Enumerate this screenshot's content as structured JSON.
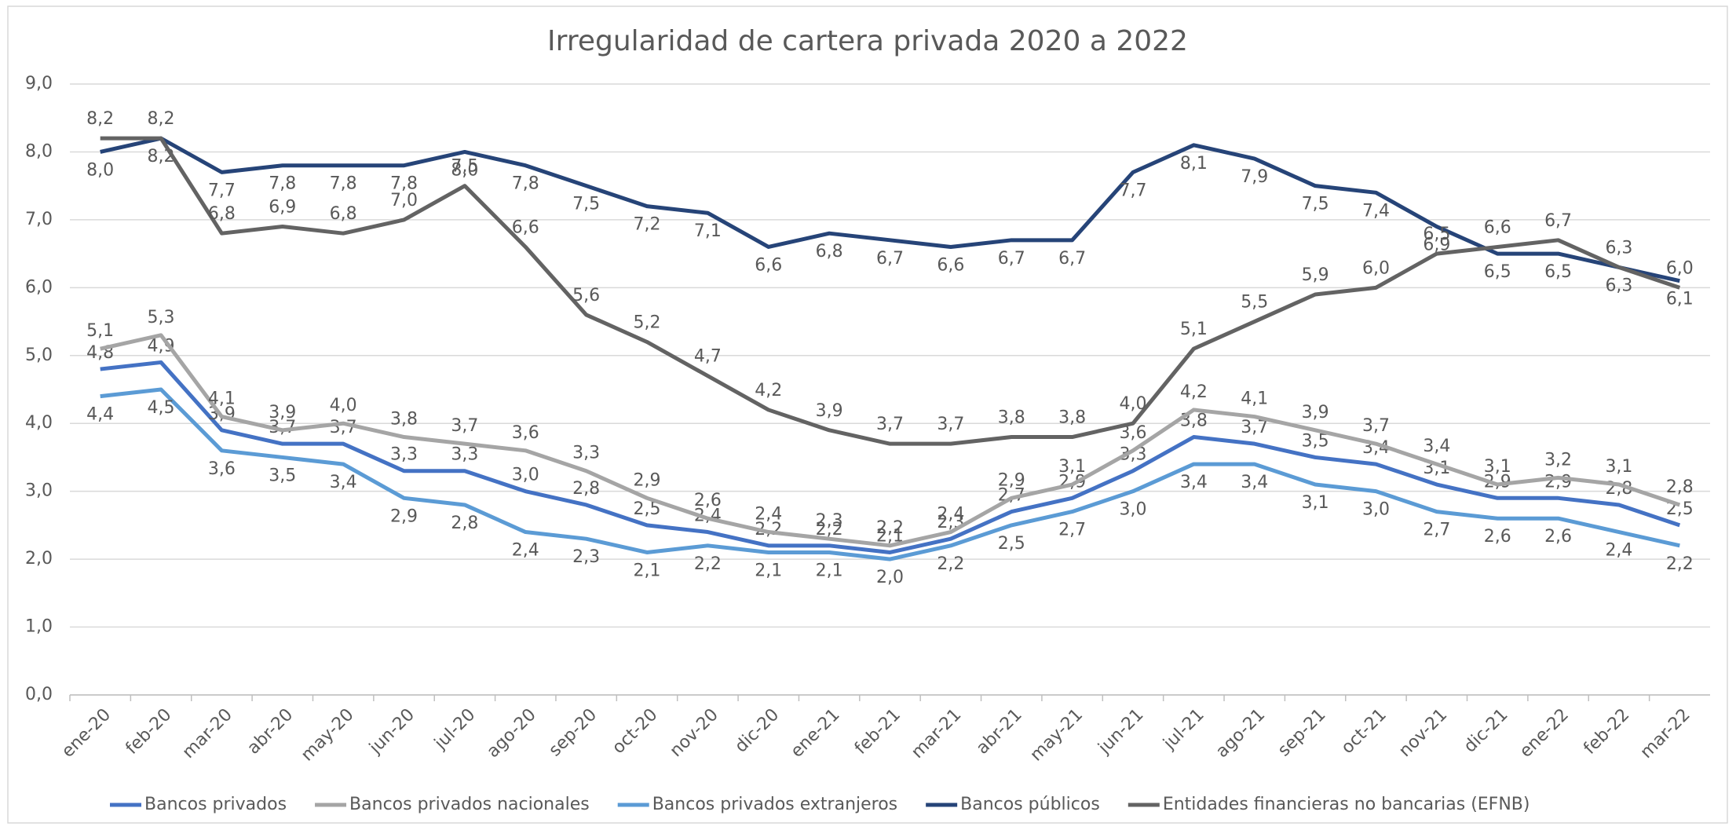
{
  "chart_data": {
    "type": "line",
    "title": "Irregularidad de cartera privada 2020 a 2022",
    "categories": [
      "ene-20",
      "feb-20",
      "mar-20",
      "abr-20",
      "may-20",
      "jun-20",
      "jul-20",
      "ago-20",
      "sep-20",
      "oct-20",
      "nov-20",
      "dic-20",
      "ene-21",
      "feb-21",
      "mar-21",
      "abr-21",
      "may-21",
      "jun-21",
      "jul-21",
      "ago-21",
      "sep-21",
      "oct-21",
      "nov-21",
      "dic-21",
      "ene-22",
      "feb-22",
      "mar-22"
    ],
    "ylim": [
      0,
      9
    ],
    "yticks": [
      {
        "value": 0,
        "label": "0,0"
      },
      {
        "value": 1,
        "label": "1,0"
      },
      {
        "value": 2,
        "label": "2,0"
      },
      {
        "value": 3,
        "label": "3,0"
      },
      {
        "value": 4,
        "label": "4,0"
      },
      {
        "value": 5,
        "label": "5,0"
      },
      {
        "value": 6,
        "label": "6,0"
      },
      {
        "value": 7,
        "label": "7,0"
      },
      {
        "value": 8,
        "label": "8,0"
      },
      {
        "value": 9,
        "label": "9,0"
      }
    ],
    "grid": true,
    "legend": "bottom",
    "series": [
      {
        "name": "Bancos privados",
        "color": "#4472c4",
        "values": [
          4.8,
          4.9,
          3.9,
          3.7,
          3.7,
          3.3,
          3.3,
          3.0,
          2.8,
          2.5,
          2.4,
          2.2,
          2.2,
          2.1,
          2.3,
          2.7,
          2.9,
          3.3,
          3.8,
          3.7,
          3.5,
          3.4,
          3.1,
          2.9,
          2.9,
          2.8,
          2.5
        ],
        "value_labels": [
          "4,8",
          "4,9",
          "3,9",
          "3,7",
          "3,7",
          "3,3",
          "3,3",
          "3,0",
          "2,8",
          "2,5",
          "2,4",
          "2,2",
          "2,2",
          "2,1",
          "2,3",
          "2,7",
          "2,9",
          "3,3",
          "3,8",
          "3,7",
          "3,5",
          "3,4",
          "3,1",
          "2,9",
          "2,9",
          "2,8",
          "2,5"
        ]
      },
      {
        "name": "Bancos privados nacionales",
        "color": "#a5a5a5",
        "values": [
          5.1,
          5.3,
          4.1,
          3.9,
          4.0,
          3.8,
          3.7,
          3.6,
          3.3,
          2.9,
          2.6,
          2.4,
          2.3,
          2.2,
          2.4,
          2.9,
          3.1,
          3.6,
          4.2,
          4.1,
          3.9,
          3.7,
          3.4,
          3.1,
          3.2,
          3.1,
          2.8
        ],
        "value_labels": [
          "5,1",
          "5,3",
          "4,1",
          "3,9",
          "4,0",
          "3,8",
          "3,7",
          "3,6",
          "3,3",
          "2,9",
          "2,6",
          "2,4",
          "2,3",
          "2,2",
          "2,4",
          "2,9",
          "3,1",
          "3,6",
          "4,2",
          "4,1",
          "3,9",
          "3,7",
          "3,4",
          "3,1",
          "3,2",
          "3,1",
          "2,8"
        ]
      },
      {
        "name": "Bancos privados extranjeros",
        "color": "#5b9bd5",
        "values": [
          4.4,
          4.5,
          3.6,
          3.5,
          3.4,
          2.9,
          2.8,
          2.4,
          2.3,
          2.1,
          2.2,
          2.1,
          2.1,
          2.0,
          2.2,
          2.5,
          2.7,
          3.0,
          3.4,
          3.4,
          3.1,
          3.0,
          2.7,
          2.6,
          2.6,
          2.4,
          2.2
        ],
        "value_labels": [
          "4,4",
          "4,5",
          "3,6",
          "3,5",
          "3,4",
          "2,9",
          "2,8",
          "2,4",
          "2,3",
          "2,1",
          "2,2",
          "2,1",
          "2,1",
          "2,0",
          "2,2",
          "2,5",
          "2,7",
          "3,0",
          "3,4",
          "3,4",
          "3,1",
          "3,0",
          "2,7",
          "2,6",
          "2,6",
          "2,4",
          "2,2"
        ]
      },
      {
        "name": "Bancos públicos",
        "color": "#264478",
        "values": [
          8.0,
          8.2,
          7.7,
          7.8,
          7.8,
          7.8,
          8.0,
          7.8,
          7.5,
          7.2,
          7.1,
          6.6,
          6.8,
          6.7,
          6.6,
          6.7,
          6.7,
          7.7,
          8.1,
          7.9,
          7.5,
          7.4,
          6.9,
          6.5,
          6.5,
          6.3,
          6.1
        ],
        "value_labels": [
          "8,0",
          "8,2",
          "7,7",
          "7,8",
          "7,8",
          "7,8",
          "8,0",
          "7,8",
          "7,5",
          "7,2",
          "7,1",
          "6,6",
          "6,8",
          "6,7",
          "6,6",
          "6,7",
          "6,7",
          "7,7",
          "8,1",
          "7,9",
          "7,5",
          "7,4",
          "6,9",
          "6,5",
          "6,5",
          "6,3",
          "6,1"
        ]
      },
      {
        "name": "Entidades financieras no bancarias (EFNB)",
        "color": "#636363",
        "values": [
          8.2,
          8.2,
          6.8,
          6.9,
          6.8,
          7.0,
          7.5,
          6.6,
          5.6,
          5.2,
          4.7,
          4.2,
          3.9,
          3.7,
          3.7,
          3.8,
          3.8,
          4.0,
          5.1,
          5.5,
          5.9,
          6.0,
          6.5,
          6.6,
          6.7,
          6.3,
          6.0
        ],
        "value_labels": [
          "8,2",
          "8,2",
          "6,8",
          "6,9",
          "6,8",
          "7,0",
          "7,5",
          "6,6",
          "5,6",
          "5,2",
          "4,7",
          "4,2",
          "3,9",
          "3,7",
          "3,7",
          "3,8",
          "3,8",
          "4,0",
          "5,1",
          "5,5",
          "5,9",
          "6,0",
          "6,5",
          "6,6",
          "6,7",
          "6,3",
          "6,0"
        ]
      }
    ]
  }
}
